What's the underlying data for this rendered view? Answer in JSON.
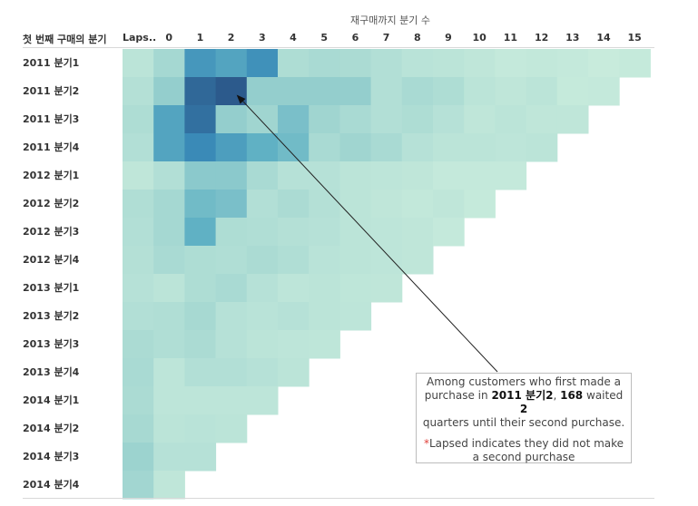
{
  "column_axis_title": "재구매까지 분기 수",
  "row_axis_title": "첫 번째 구매의 분기",
  "chart_data": {
    "type": "heatmap",
    "columns": [
      "Laps..",
      "0",
      "1",
      "2",
      "3",
      "4",
      "5",
      "6",
      "7",
      "8",
      "9",
      "10",
      "11",
      "12",
      "13",
      "14",
      "15"
    ],
    "rows": [
      "2011 분기1",
      "2011 분기2",
      "2011 분기3",
      "2011 분기4",
      "2012 분기1",
      "2012 분기2",
      "2012 분기3",
      "2012 분기4",
      "2013 분기1",
      "2013 분기2",
      "2013 분기3",
      "2013 분기4",
      "2014 분기1",
      "2014 분기2",
      "2014 분기3",
      "2014 분기4"
    ],
    "color_scale": {
      "low": "#bfe6d6",
      "high": "#2c5d8e"
    },
    "values": [
      [
        40,
        65,
        130,
        120,
        135,
        55,
        60,
        58,
        50,
        42,
        40,
        35,
        30,
        32,
        30,
        25,
        28
      ],
      [
        48,
        80,
        160,
        168,
        80,
        80,
        80,
        80,
        50,
        60,
        55,
        40,
        35,
        40,
        28,
        30
      ],
      [
        55,
        120,
        155,
        80,
        70,
        95,
        70,
        60,
        50,
        55,
        45,
        35,
        40,
        35,
        35
      ],
      [
        50,
        120,
        140,
        125,
        110,
        100,
        60,
        70,
        60,
        45,
        40,
        40,
        38,
        40
      ],
      [
        35,
        50,
        85,
        85,
        60,
        45,
        45,
        40,
        38,
        35,
        30,
        30,
        30
      ],
      [
        52,
        65,
        100,
        95,
        50,
        58,
        48,
        40,
        35,
        32,
        35,
        28
      ],
      [
        50,
        65,
        110,
        55,
        52,
        48,
        45,
        40,
        38,
        35,
        30
      ],
      [
        48,
        60,
        55,
        52,
        58,
        52,
        42,
        40,
        38,
        35
      ],
      [
        45,
        40,
        55,
        60,
        45,
        38,
        40,
        36,
        35
      ],
      [
        50,
        52,
        62,
        45,
        42,
        45,
        40,
        38
      ],
      [
        58,
        52,
        58,
        45,
        40,
        38,
        36
      ],
      [
        60,
        38,
        50,
        50,
        45,
        40
      ],
      [
        58,
        38,
        38,
        38,
        38
      ],
      [
        62,
        40,
        42,
        40
      ],
      [
        75,
        45,
        45
      ],
      [
        68,
        35
      ]
    ],
    "annotation": {
      "row": "2011 분기2",
      "column": "2",
      "value": 168
    }
  },
  "annotation_box": {
    "line1": "Among customers who first made a",
    "line2_prefix": "purchase in",
    "line2_quarter": "2011 분기2",
    "line2_value": "168",
    "line2_mid": "waited",
    "line2_num": "2",
    "line3": "quarters until their second purchase.",
    "note_star": "*",
    "note_text": "Lapsed indicates they did not make",
    "note_line2": "a second purchase"
  }
}
